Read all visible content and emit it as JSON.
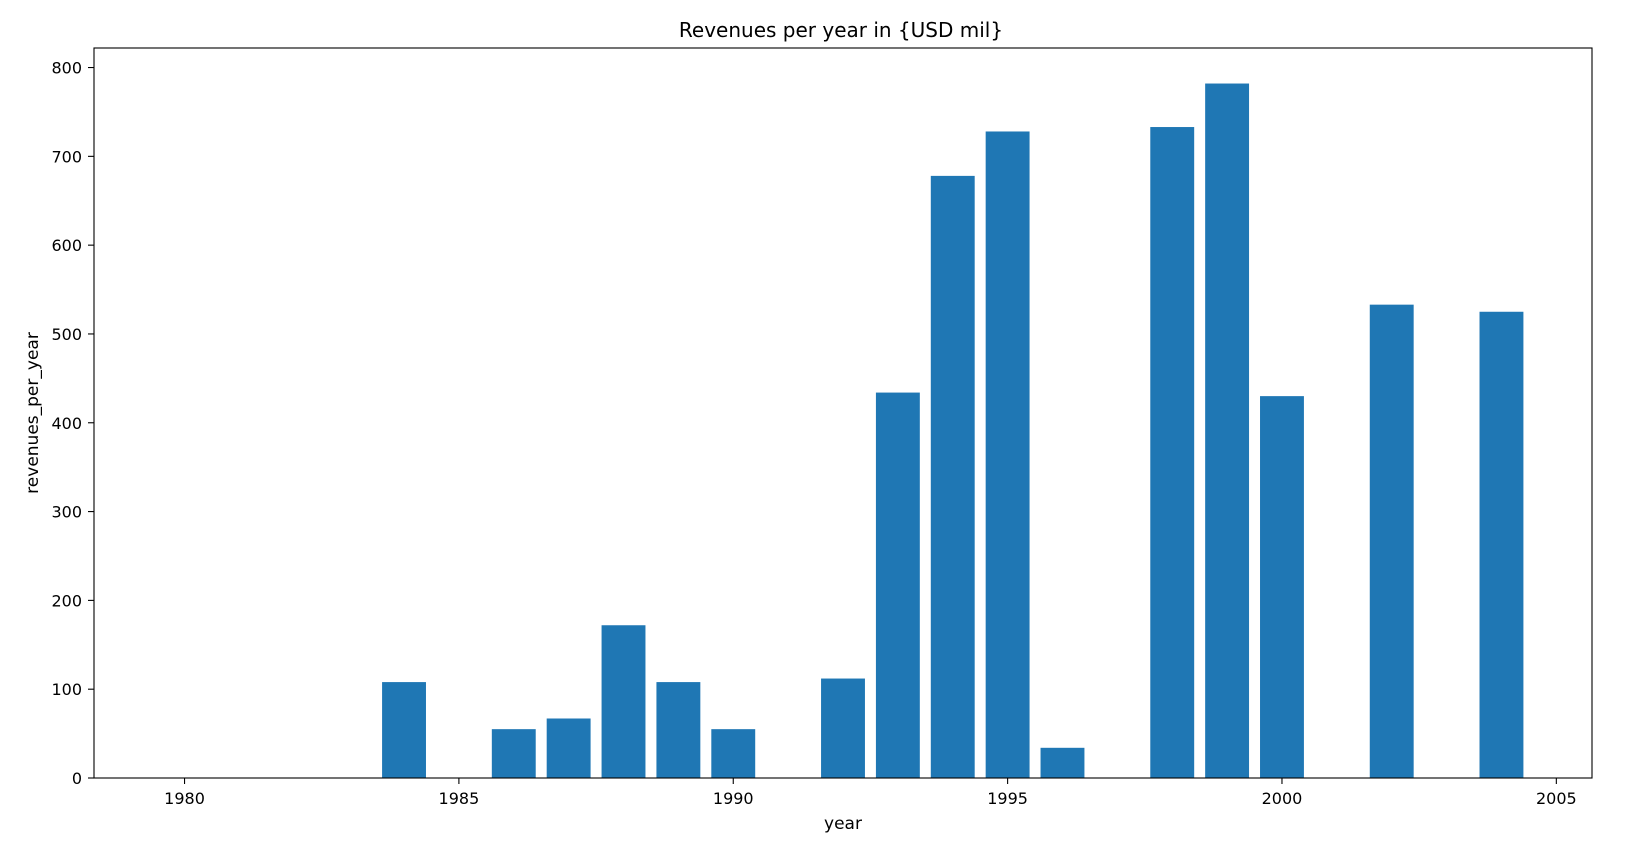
{
  "chart_data": {
    "type": "bar",
    "title": "Revenues per year in {USD mil}",
    "xlabel": "year",
    "ylabel": "revenues_per_year",
    "xlim": [
      1978.35,
      2005.65
    ],
    "ylim": [
      0,
      822
    ],
    "xticks": [
      1980,
      1985,
      1990,
      1995,
      2000,
      2005
    ],
    "yticks": [
      0,
      100,
      200,
      300,
      400,
      500,
      600,
      700,
      800
    ],
    "bar_width": 0.8,
    "bar_color": "#1f77b4",
    "grid": false,
    "legend": "none",
    "x": [
      1984,
      1986,
      1987,
      1988,
      1989,
      1990,
      1992,
      1993,
      1994,
      1995,
      1996,
      1998,
      1999,
      2000,
      2002,
      2004
    ],
    "values": [
      108,
      55,
      67,
      172,
      108,
      55,
      112,
      434,
      678,
      728,
      34,
      733,
      782,
      430,
      533,
      525
    ]
  }
}
